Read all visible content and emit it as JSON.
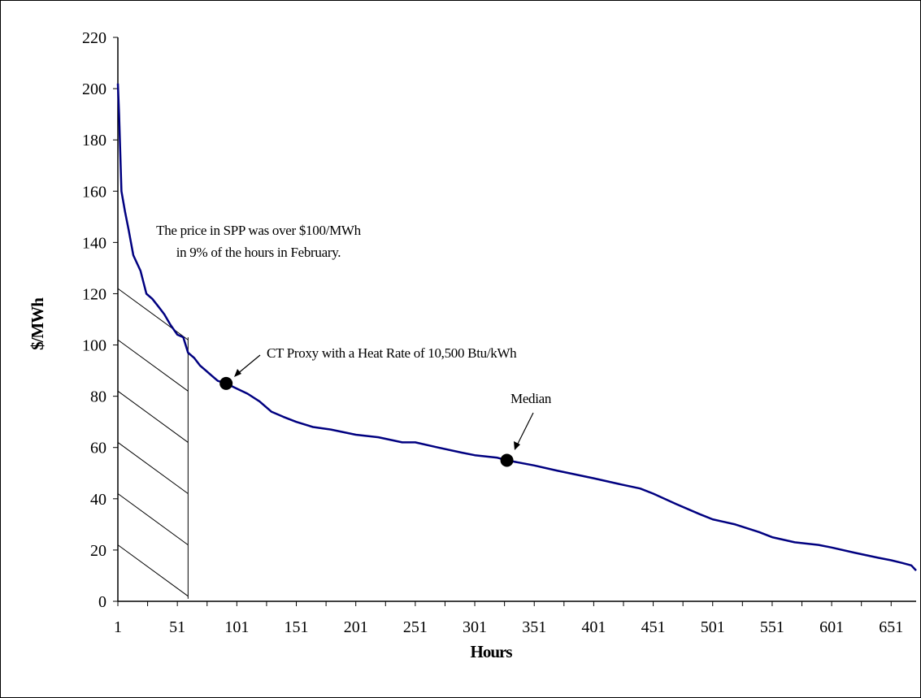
{
  "chart_data": {
    "type": "line",
    "title": "",
    "xlabel": "Hours",
    "ylabel": "$/MWh",
    "xlim": [
      1,
      672
    ],
    "ylim": [
      0,
      220
    ],
    "y_ticks": [
      0,
      20,
      40,
      60,
      80,
      100,
      120,
      140,
      160,
      180,
      200,
      220
    ],
    "x_tick_labels": [
      "1",
      "51",
      "101",
      "151",
      "201",
      "251",
      "301",
      "351",
      "401",
      "451",
      "501",
      "551",
      "601",
      "651"
    ],
    "grid": false,
    "legend": "none",
    "series": [
      {
        "color": "#000080",
        "x": [
          1,
          2,
          4,
          7,
          10,
          14,
          20,
          25,
          30,
          35,
          40,
          45,
          51,
          56,
          60,
          65,
          70,
          75,
          80,
          85,
          92,
          101,
          110,
          120,
          130,
          140,
          151,
          165,
          180,
          201,
          220,
          240,
          251,
          270,
          290,
          301,
          320,
          328,
          351,
          370,
          401,
          420,
          440,
          451,
          470,
          490,
          501,
          520,
          540,
          551,
          570,
          590,
          601,
          620,
          640,
          651,
          660,
          668,
          672
        ],
        "y": [
          202,
          190,
          160,
          152,
          145,
          135,
          129,
          120,
          118,
          115,
          112,
          108,
          104,
          103,
          97,
          95,
          92,
          90,
          88,
          86,
          85,
          83,
          81,
          78,
          74,
          72,
          70,
          68,
          67,
          65,
          64,
          62,
          62,
          60,
          58,
          57,
          56,
          55,
          53,
          51,
          48,
          46,
          44,
          42,
          38,
          34,
          32,
          30,
          27,
          25,
          23,
          22,
          21,
          19,
          17,
          16,
          15,
          14,
          12
        ]
      }
    ],
    "markers": [
      {
        "x": 92,
        "y": 85,
        "label": "CT Proxy with a Heat Rate of 10,500 Btu/kWh"
      },
      {
        "x": 328,
        "y": 55,
        "label": "Median"
      }
    ],
    "annotations": {
      "shaded_note_line1": "The price in SPP was over $100/MWh",
      "shaded_note_line2": "in 9% of the hours in February.",
      "shaded_region_hours": [
        1,
        60
      ]
    }
  }
}
